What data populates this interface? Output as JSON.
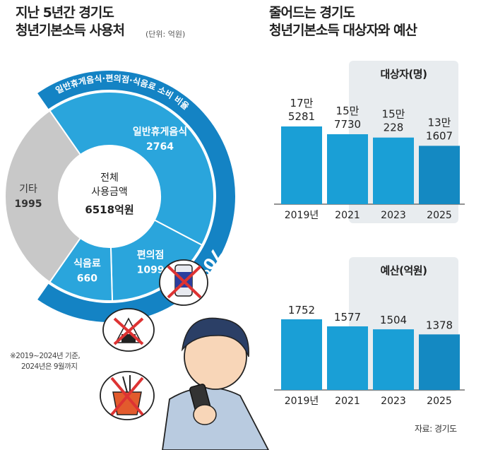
{
  "left": {
    "title_line1": "지난 5년간 경기도",
    "title_line2": "청년기본소득 사용처",
    "unit": "(단위: 억원)",
    "ring_label": "일반휴게음식·편의점·식음료 소비 비율",
    "ring_pct": "70%",
    "center_line1": "전체",
    "center_line2": "사용금액",
    "center_line3": "6518억원",
    "note_line1": "※2019~2024년 기준,",
    "note_line2": "2024년은 9월까지"
  },
  "right": {
    "title_line1": "줄어드는 경기도",
    "title_line2": "청년기본소득 대상자와 예산",
    "source": "자료: 경기도"
  },
  "colors": {
    "bar": "#1a9fd6",
    "bar_dark": "#1489c2",
    "ring": "#1483c4",
    "sector": "#2aa5dc",
    "etc": "#c8c8c8",
    "panel_bg": "#e8ecef"
  },
  "chart_data": [
    {
      "type": "pie",
      "title": "지난 5년간 경기도 청년기본소득 사용처",
      "unit": "(단위: 억원)",
      "categories": [
        "일반휴게음식",
        "편의점",
        "식음료",
        "기타"
      ],
      "values": [
        2764,
        1099,
        660,
        1995
      ],
      "total_label": "6518억원"
    },
    {
      "type": "bar",
      "title": "대상자(명)",
      "categories": [
        "2019년",
        "2021",
        "2023",
        "2025"
      ],
      "values": [
        175281,
        157730,
        150228,
        131607
      ],
      "labels_line1": [
        "17만",
        "15만",
        "15만",
        "13만"
      ],
      "labels_line2": [
        "5281",
        "7730",
        "228",
        "1607"
      ]
    },
    {
      "type": "bar",
      "title": "예산(억원)",
      "categories": [
        "2019년",
        "2021",
        "2023",
        "2025"
      ],
      "values": [
        1752,
        1577,
        1504,
        1378
      ],
      "labels": [
        "1752",
        "1577",
        "1504",
        "1378"
      ]
    }
  ]
}
